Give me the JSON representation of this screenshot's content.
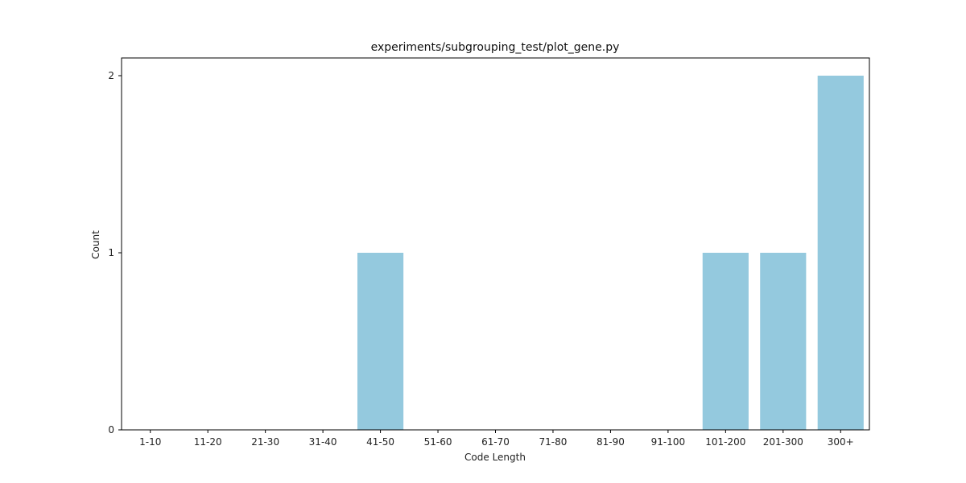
{
  "chart_data": {
    "type": "bar",
    "title": "experiments/subgrouping_test/plot_gene.py",
    "xlabel": "Code Length",
    "ylabel": "Count",
    "categories": [
      "1-10",
      "11-20",
      "21-30",
      "31-40",
      "41-50",
      "51-60",
      "61-70",
      "71-80",
      "81-90",
      "91-100",
      "101-200",
      "201-300",
      "300+"
    ],
    "values": [
      0,
      0,
      0,
      0,
      1,
      0,
      0,
      0,
      0,
      0,
      1,
      1,
      2
    ],
    "yticks": [
      "0",
      "1",
      "2"
    ],
    "ylim": [
      0,
      2.1
    ],
    "grid": false,
    "legend": "none",
    "bar_color": "#94c9de",
    "axis_color": "#000000"
  }
}
